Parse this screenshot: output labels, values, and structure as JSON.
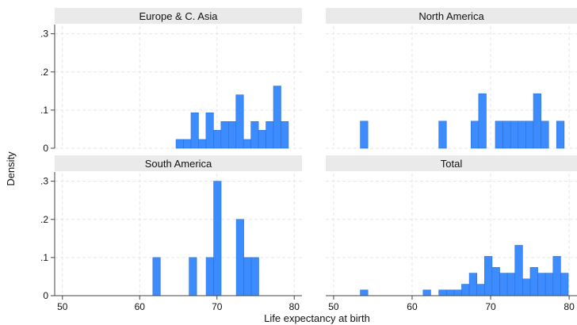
{
  "chart_data": {
    "type": "bar",
    "subtype": "histogram-facets",
    "xlabel": "Life expectancy at birth",
    "ylabel": "Density",
    "xlim": [
      49,
      81
    ],
    "ylim": [
      0,
      0.32
    ],
    "x_ticks": [
      50,
      60,
      70,
      80
    ],
    "y_ticks": [
      {
        "value": 0,
        "label": "0"
      },
      {
        "value": 0.1,
        "label": ".1"
      },
      {
        "value": 0.2,
        "label": ".2"
      },
      {
        "value": 0.3,
        "label": ".3"
      }
    ],
    "bin_width": 0.97,
    "grid": true,
    "bar_color": "#3d8cff",
    "bar_edge_color": "#2b6fd6",
    "facets": [
      {
        "title": "Europe & C. Asia",
        "bins": [
          {
            "x0": 64.7,
            "value": 0.023
          },
          {
            "x0": 65.67,
            "value": 0.023
          },
          {
            "x0": 66.64,
            "value": 0.093
          },
          {
            "x0": 67.61,
            "value": 0.023
          },
          {
            "x0": 68.58,
            "value": 0.093
          },
          {
            "x0": 69.55,
            "value": 0.047
          },
          {
            "x0": 70.52,
            "value": 0.07
          },
          {
            "x0": 71.49,
            "value": 0.07
          },
          {
            "x0": 72.46,
            "value": 0.14
          },
          {
            "x0": 73.43,
            "value": 0.023
          },
          {
            "x0": 74.4,
            "value": 0.07
          },
          {
            "x0": 75.37,
            "value": 0.047
          },
          {
            "x0": 76.34,
            "value": 0.07
          },
          {
            "x0": 77.31,
            "value": 0.163
          },
          {
            "x0": 78.28,
            "value": 0.07
          }
        ]
      },
      {
        "title": "North America",
        "bins": [
          {
            "x0": 53.4,
            "value": 0.071
          },
          {
            "x0": 63.4,
            "value": 0.071
          },
          {
            "x0": 67.5,
            "value": 0.071
          },
          {
            "x0": 68.47,
            "value": 0.143
          },
          {
            "x0": 70.6,
            "value": 0.071
          },
          {
            "x0": 71.57,
            "value": 0.071
          },
          {
            "x0": 72.54,
            "value": 0.071
          },
          {
            "x0": 73.51,
            "value": 0.071
          },
          {
            "x0": 74.48,
            "value": 0.071
          },
          {
            "x0": 75.45,
            "value": 0.143
          },
          {
            "x0": 76.42,
            "value": 0.071
          },
          {
            "x0": 78.4,
            "value": 0.071
          }
        ]
      },
      {
        "title": "South America",
        "bins": [
          {
            "x0": 61.7,
            "value": 0.1
          },
          {
            "x0": 66.4,
            "value": 0.1
          },
          {
            "x0": 68.6,
            "value": 0.1
          },
          {
            "x0": 69.57,
            "value": 0.3
          },
          {
            "x0": 72.5,
            "value": 0.2
          },
          {
            "x0": 73.47,
            "value": 0.1
          },
          {
            "x0": 74.44,
            "value": 0.1
          }
        ]
      },
      {
        "title": "Total",
        "bins": [
          {
            "x0": 53.4,
            "value": 0.015
          },
          {
            "x0": 61.4,
            "value": 0.015
          },
          {
            "x0": 63.4,
            "value": 0.015
          },
          {
            "x0": 64.37,
            "value": 0.015
          },
          {
            "x0": 65.34,
            "value": 0.015
          },
          {
            "x0": 66.31,
            "value": 0.03
          },
          {
            "x0": 67.28,
            "value": 0.059
          },
          {
            "x0": 68.25,
            "value": 0.03
          },
          {
            "x0": 69.22,
            "value": 0.103
          },
          {
            "x0": 70.19,
            "value": 0.074
          },
          {
            "x0": 71.16,
            "value": 0.059
          },
          {
            "x0": 72.13,
            "value": 0.059
          },
          {
            "x0": 73.1,
            "value": 0.132
          },
          {
            "x0": 74.07,
            "value": 0.044
          },
          {
            "x0": 75.04,
            "value": 0.074
          },
          {
            "x0": 76.01,
            "value": 0.059
          },
          {
            "x0": 76.98,
            "value": 0.059
          },
          {
            "x0": 77.95,
            "value": 0.103
          },
          {
            "x0": 78.92,
            "value": 0.059
          }
        ]
      }
    ]
  }
}
